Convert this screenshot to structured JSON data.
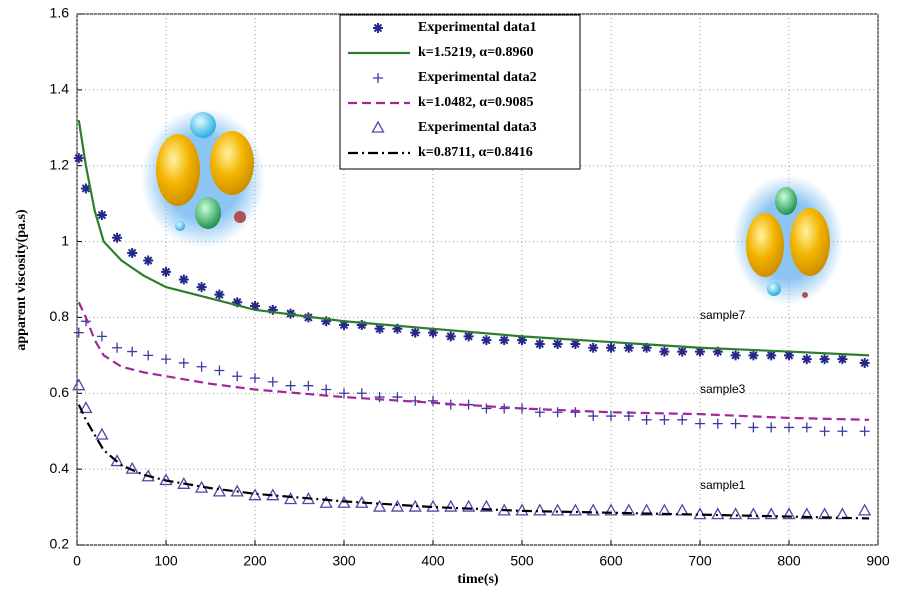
{
  "chart_data": {
    "type": "line",
    "xlabel": "time(s)",
    "ylabel": "apparent viscosity(pa.s)",
    "xlim": [
      0,
      900
    ],
    "xticks": [
      0,
      100,
      200,
      300,
      400,
      500,
      600,
      700,
      800,
      900
    ],
    "ylim": [
      0.2,
      1.6
    ],
    "yticks": [
      0.2,
      0.4,
      0.6,
      0.8,
      1,
      1.2,
      1.4,
      1.6
    ],
    "grid": true,
    "legend": "top",
    "series": [
      {
        "name": "Experimental data1",
        "style": "star",
        "color": "#25288a",
        "x": [
          2,
          10,
          28,
          45,
          62,
          80,
          100,
          120,
          140,
          160,
          180,
          200,
          220,
          240,
          260,
          280,
          300,
          320,
          340,
          360,
          380,
          400,
          420,
          440,
          460,
          480,
          500,
          520,
          540,
          560,
          580,
          600,
          620,
          640,
          660,
          680,
          700,
          720,
          740,
          760,
          780,
          800,
          820,
          840,
          860,
          885
        ],
        "values": [
          1.22,
          1.14,
          1.07,
          1.01,
          0.97,
          0.95,
          0.92,
          0.9,
          0.88,
          0.86,
          0.84,
          0.83,
          0.82,
          0.81,
          0.8,
          0.79,
          0.78,
          0.78,
          0.77,
          0.77,
          0.76,
          0.76,
          0.75,
          0.75,
          0.74,
          0.74,
          0.74,
          0.73,
          0.73,
          0.73,
          0.72,
          0.72,
          0.72,
          0.72,
          0.71,
          0.71,
          0.71,
          0.71,
          0.7,
          0.7,
          0.7,
          0.7,
          0.69,
          0.69,
          0.69,
          0.68
        ]
      },
      {
        "name": "k=1.5219,  α=0.8960",
        "style": "solid",
        "color": "#2e7d2e",
        "x": [
          2,
          10,
          20,
          30,
          50,
          75,
          100,
          150,
          200,
          300,
          400,
          500,
          600,
          700,
          800,
          890
        ],
        "values": [
          1.32,
          1.2,
          1.08,
          1.0,
          0.95,
          0.91,
          0.88,
          0.85,
          0.82,
          0.79,
          0.77,
          0.75,
          0.735,
          0.72,
          0.71,
          0.7
        ]
      },
      {
        "name": "Experimental data2",
        "style": "plus",
        "color": "#3a3aa0",
        "x": [
          2,
          10,
          28,
          45,
          62,
          80,
          100,
          120,
          140,
          160,
          180,
          200,
          220,
          240,
          260,
          280,
          300,
          320,
          340,
          360,
          380,
          400,
          420,
          440,
          460,
          480,
          500,
          520,
          540,
          560,
          580,
          600,
          620,
          640,
          660,
          680,
          700,
          720,
          740,
          760,
          780,
          800,
          820,
          840,
          860,
          885
        ],
        "values": [
          0.76,
          0.79,
          0.75,
          0.72,
          0.71,
          0.7,
          0.69,
          0.68,
          0.67,
          0.66,
          0.645,
          0.64,
          0.63,
          0.62,
          0.62,
          0.61,
          0.6,
          0.6,
          0.59,
          0.59,
          0.58,
          0.58,
          0.57,
          0.57,
          0.56,
          0.56,
          0.56,
          0.55,
          0.55,
          0.55,
          0.54,
          0.54,
          0.54,
          0.53,
          0.53,
          0.53,
          0.52,
          0.52,
          0.52,
          0.51,
          0.51,
          0.51,
          0.51,
          0.5,
          0.5,
          0.5
        ]
      },
      {
        "name": "k=1.0482,  α=0.9085",
        "style": "dashed",
        "color": "#a0289c",
        "x": [
          2,
          10,
          20,
          30,
          50,
          75,
          100,
          150,
          200,
          300,
          400,
          500,
          600,
          700,
          800,
          890
        ],
        "values": [
          0.84,
          0.8,
          0.74,
          0.7,
          0.67,
          0.655,
          0.645,
          0.625,
          0.61,
          0.59,
          0.575,
          0.56,
          0.55,
          0.545,
          0.535,
          0.53
        ]
      },
      {
        "name": "Experimental data3",
        "style": "triangle",
        "color": "#4a4aa8",
        "x": [
          2,
          10,
          28,
          45,
          62,
          80,
          100,
          120,
          140,
          160,
          180,
          200,
          220,
          240,
          260,
          280,
          300,
          320,
          340,
          360,
          380,
          400,
          420,
          440,
          460,
          480,
          500,
          520,
          540,
          560,
          580,
          600,
          620,
          640,
          660,
          680,
          700,
          720,
          740,
          760,
          780,
          800,
          820,
          840,
          860,
          885
        ],
        "values": [
          0.62,
          0.56,
          0.49,
          0.42,
          0.4,
          0.38,
          0.37,
          0.36,
          0.35,
          0.34,
          0.34,
          0.33,
          0.33,
          0.32,
          0.32,
          0.31,
          0.31,
          0.31,
          0.3,
          0.3,
          0.3,
          0.3,
          0.3,
          0.3,
          0.3,
          0.29,
          0.29,
          0.29,
          0.29,
          0.29,
          0.29,
          0.29,
          0.29,
          0.29,
          0.29,
          0.29,
          0.28,
          0.28,
          0.28,
          0.28,
          0.28,
          0.28,
          0.28,
          0.28,
          0.28,
          0.29
        ]
      },
      {
        "name": "k=0.8711,  α=0.8416",
        "style": "dashdot",
        "color": "#000000",
        "x": [
          2,
          10,
          20,
          30,
          50,
          75,
          100,
          150,
          200,
          300,
          400,
          500,
          600,
          700,
          800,
          890
        ],
        "values": [
          0.57,
          0.53,
          0.49,
          0.45,
          0.41,
          0.385,
          0.37,
          0.35,
          0.335,
          0.315,
          0.3,
          0.29,
          0.285,
          0.28,
          0.275,
          0.27
        ]
      }
    ],
    "annotations": [
      "sample7",
      "sample3",
      "sample1"
    ]
  }
}
